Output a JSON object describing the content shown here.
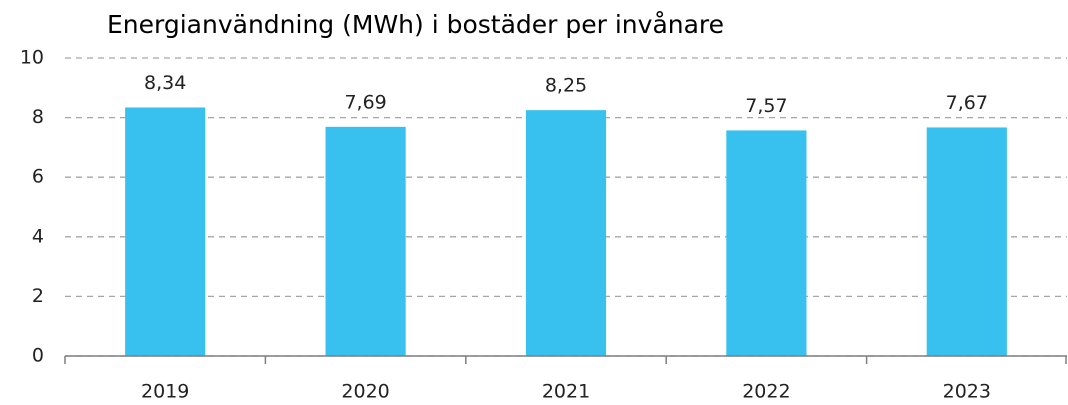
{
  "chart_data": {
    "type": "bar",
    "title": "Energianvändning (MWh) i bostäder per invånare",
    "categories": [
      "2019",
      "2020",
      "2021",
      "2022",
      "2023"
    ],
    "values": [
      8.34,
      7.69,
      8.25,
      7.57,
      7.67
    ],
    "value_labels": [
      "8,34",
      "7,69",
      "8,25",
      "7,57",
      "7,67"
    ],
    "color": "#38c1ee",
    "ylim": [
      0,
      10
    ],
    "yticks": [
      0,
      2,
      4,
      6,
      8,
      10
    ],
    "grid": true
  }
}
